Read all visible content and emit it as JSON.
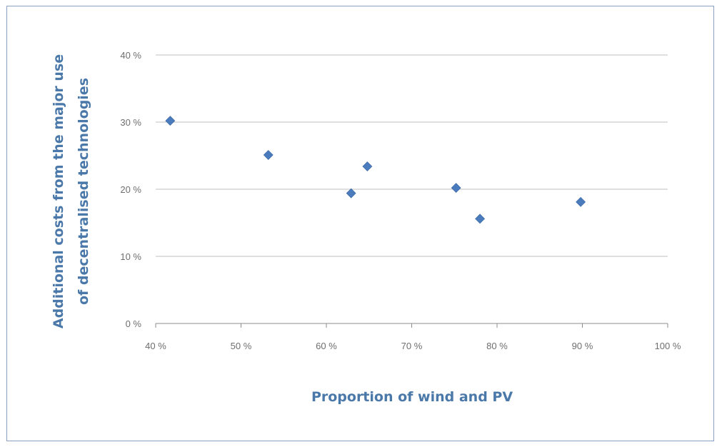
{
  "chart_data": {
    "type": "scatter",
    "xlabel": "Proportion of wind and PV",
    "ylabel_lines": [
      "Additional costs from the major use",
      "of decentralised technologies"
    ],
    "xlim": [
      40,
      100
    ],
    "ylim": [
      0,
      40
    ],
    "x_ticks": [
      40,
      50,
      60,
      70,
      80,
      90,
      100
    ],
    "y_ticks": [
      0,
      10,
      20,
      30,
      40
    ],
    "x_tick_labels": [
      "40 %",
      "50 %",
      "60 %",
      "70 %",
      "80 %",
      "90 %",
      "100 %"
    ],
    "y_tick_labels": [
      "0 %",
      "10 %",
      "20 %",
      "30 %",
      "40 %"
    ],
    "grid": "horizontal",
    "legend": "none",
    "marker": "diamond",
    "marker_color": "#4a7bbd",
    "points": [
      {
        "x": 41.7,
        "y": 30.2
      },
      {
        "x": 53.2,
        "y": 25.1
      },
      {
        "x": 62.9,
        "y": 19.4
      },
      {
        "x": 64.8,
        "y": 23.4
      },
      {
        "x": 75.2,
        "y": 20.2
      },
      {
        "x": 78.0,
        "y": 15.6
      },
      {
        "x": 89.8,
        "y": 18.1
      }
    ]
  }
}
